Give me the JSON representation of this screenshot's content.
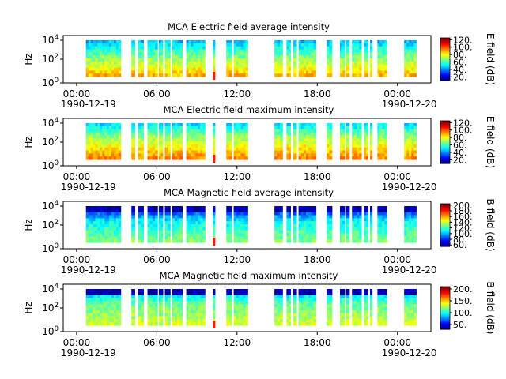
{
  "chart_data": [
    {
      "type": "heatmap",
      "title": "MCA  Electric field average intensity",
      "ylabel": "Hz",
      "y_scale": "log",
      "y_tick_labels": [
        {
          "base": "10",
          "exp": "0"
        },
        {
          "base": "10",
          "exp": "2"
        },
        {
          "base": "10",
          "exp": "4"
        }
      ],
      "x_tick_labels": [
        "00:00",
        "06:00",
        "12:00",
        "18:00",
        "00:00"
      ],
      "x_start_date": "1990-12-19",
      "x_end_date": "1990-12-20",
      "colorbar": {
        "label": "E field (dB)",
        "ticks": [
          "20.",
          "40.",
          "60.",
          "80.",
          "100.",
          "120."
        ],
        "range": [
          10,
          125
        ],
        "colormap": "jet"
      },
      "segments_hours": [
        [
          1.7,
          4.3
        ],
        [
          5.1,
          5.35
        ],
        [
          5.6,
          6.0
        ],
        [
          6.3,
          7.05
        ],
        [
          7.15,
          7.45
        ],
        [
          7.6,
          8.0
        ],
        [
          8.15,
          8.9
        ],
        [
          9.2,
          10.6
        ],
        [
          11.2,
          11.35
        ],
        [
          12.2,
          12.6
        ],
        [
          12.75,
          13.8
        ],
        [
          15.8,
          16.4
        ],
        [
          16.7,
          17.0
        ],
        [
          17.2,
          17.45
        ],
        [
          17.6,
          18.9
        ],
        [
          19.7,
          20.1
        ],
        [
          20.7,
          21.05
        ],
        [
          21.15,
          21.4
        ],
        [
          21.6,
          22.3
        ],
        [
          22.5,
          22.8
        ],
        [
          22.95,
          23.1
        ],
        [
          23.5,
          24.2
        ],
        [
          25.5,
          26.4
        ]
      ],
      "hot_columns_hours": [
        11.2
      ],
      "z_estimates_db": {
        "low_freq": 90,
        "mid_freq": 65,
        "high_freq": 45
      }
    },
    {
      "type": "heatmap",
      "title": "MCA  Electric field maximum intensity",
      "ylabel": "Hz",
      "y_scale": "log",
      "y_tick_labels": [
        {
          "base": "10",
          "exp": "0"
        },
        {
          "base": "10",
          "exp": "2"
        },
        {
          "base": "10",
          "exp": "4"
        }
      ],
      "x_tick_labels": [
        "00:00",
        "06:00",
        "12:00",
        "18:00",
        "00:00"
      ],
      "x_start_date": "1990-12-19",
      "x_end_date": "1990-12-20",
      "colorbar": {
        "label": "E field (dB)",
        "ticks": [
          "20.",
          "40.",
          "60.",
          "80.",
          "100.",
          "120."
        ],
        "range": [
          10,
          125
        ],
        "colormap": "jet"
      },
      "segments_hours": [
        [
          1.7,
          4.3
        ],
        [
          5.1,
          5.35
        ],
        [
          5.6,
          6.0
        ],
        [
          6.3,
          7.05
        ],
        [
          7.15,
          7.45
        ],
        [
          7.6,
          8.0
        ],
        [
          8.15,
          8.9
        ],
        [
          9.2,
          10.6
        ],
        [
          11.2,
          11.35
        ],
        [
          12.2,
          12.6
        ],
        [
          12.75,
          13.8
        ],
        [
          15.8,
          16.4
        ],
        [
          16.7,
          17.0
        ],
        [
          17.2,
          17.45
        ],
        [
          17.6,
          18.9
        ],
        [
          19.7,
          20.1
        ],
        [
          20.7,
          21.05
        ],
        [
          21.15,
          21.4
        ],
        [
          21.6,
          22.3
        ],
        [
          22.5,
          22.8
        ],
        [
          22.95,
          23.1
        ],
        [
          23.5,
          24.2
        ],
        [
          25.5,
          26.4
        ]
      ],
      "hot_columns_hours": [
        11.2
      ],
      "z_estimates_db": {
        "low_freq": 95,
        "mid_freq": 72,
        "high_freq": 50
      }
    },
    {
      "type": "heatmap",
      "title": "MCA  Magnetic field average intensity",
      "ylabel": "Hz",
      "y_scale": "log",
      "y_tick_labels": [
        {
          "base": "10",
          "exp": "0"
        },
        {
          "base": "10",
          "exp": "2"
        },
        {
          "base": "10",
          "exp": "4"
        }
      ],
      "x_tick_labels": [
        "00:00",
        "06:00",
        "12:00",
        "18:00",
        "00:00"
      ],
      "x_start_date": "1990-12-19",
      "x_end_date": "1990-12-20",
      "colorbar": {
        "label": "B field (dB)",
        "ticks": [
          "60.",
          "80.",
          "100.",
          "120.",
          "140.",
          "160.",
          "180.",
          "200."
        ],
        "range": [
          55,
          205
        ],
        "colormap": "jet"
      },
      "segments_hours": [
        [
          1.7,
          4.3
        ],
        [
          5.1,
          5.35
        ],
        [
          5.6,
          6.0
        ],
        [
          6.3,
          7.05
        ],
        [
          7.15,
          7.45
        ],
        [
          7.6,
          8.0
        ],
        [
          8.15,
          8.9
        ],
        [
          9.2,
          10.6
        ],
        [
          11.2,
          11.35
        ],
        [
          12.2,
          12.6
        ],
        [
          12.75,
          13.8
        ],
        [
          15.8,
          16.4
        ],
        [
          16.7,
          17.0
        ],
        [
          17.2,
          17.45
        ],
        [
          17.6,
          18.9
        ],
        [
          19.7,
          20.1
        ],
        [
          20.7,
          21.05
        ],
        [
          21.15,
          21.4
        ],
        [
          21.6,
          22.3
        ],
        [
          22.5,
          22.8
        ],
        [
          22.95,
          23.1
        ],
        [
          23.5,
          24.2
        ],
        [
          25.5,
          26.4
        ]
      ],
      "hot_columns_hours": [
        11.2
      ],
      "z_estimates_db": {
        "low_freq": 130,
        "mid_freq": 110,
        "high_freq": 70
      }
    },
    {
      "type": "heatmap",
      "title": "MCA  Magnetic field maximum intensity",
      "ylabel": "Hz",
      "y_scale": "log",
      "y_tick_labels": [
        {
          "base": "10",
          "exp": "0"
        },
        {
          "base": "10",
          "exp": "2"
        },
        {
          "base": "10",
          "exp": "4"
        }
      ],
      "x_tick_labels": [
        "00:00",
        "06:00",
        "12:00",
        "18:00",
        "00:00"
      ],
      "x_start_date": "1990-12-19",
      "x_end_date": "1990-12-20",
      "colorbar": {
        "label": "B field (dB)",
        "ticks": [
          "50.",
          "100.",
          "150.",
          "200."
        ],
        "range": [
          30,
          210
        ],
        "colormap": "jet"
      },
      "segments_hours": [
        [
          1.7,
          4.3
        ],
        [
          5.1,
          5.35
        ],
        [
          5.6,
          6.0
        ],
        [
          6.3,
          7.05
        ],
        [
          7.15,
          7.45
        ],
        [
          7.6,
          8.0
        ],
        [
          8.15,
          8.9
        ],
        [
          9.2,
          10.6
        ],
        [
          11.2,
          11.35
        ],
        [
          12.2,
          12.6
        ],
        [
          12.75,
          13.8
        ],
        [
          15.8,
          16.4
        ],
        [
          16.7,
          17.0
        ],
        [
          17.2,
          17.45
        ],
        [
          17.6,
          18.9
        ],
        [
          19.7,
          20.1
        ],
        [
          20.7,
          21.05
        ],
        [
          21.15,
          21.4
        ],
        [
          21.6,
          22.3
        ],
        [
          22.5,
          22.8
        ],
        [
          22.95,
          23.1
        ],
        [
          23.5,
          24.2
        ],
        [
          25.5,
          26.4
        ]
      ],
      "hot_columns_hours": [
        11.2
      ],
      "z_estimates_db": {
        "low_freq": 135,
        "mid_freq": 115,
        "high_freq": 80
      }
    }
  ]
}
